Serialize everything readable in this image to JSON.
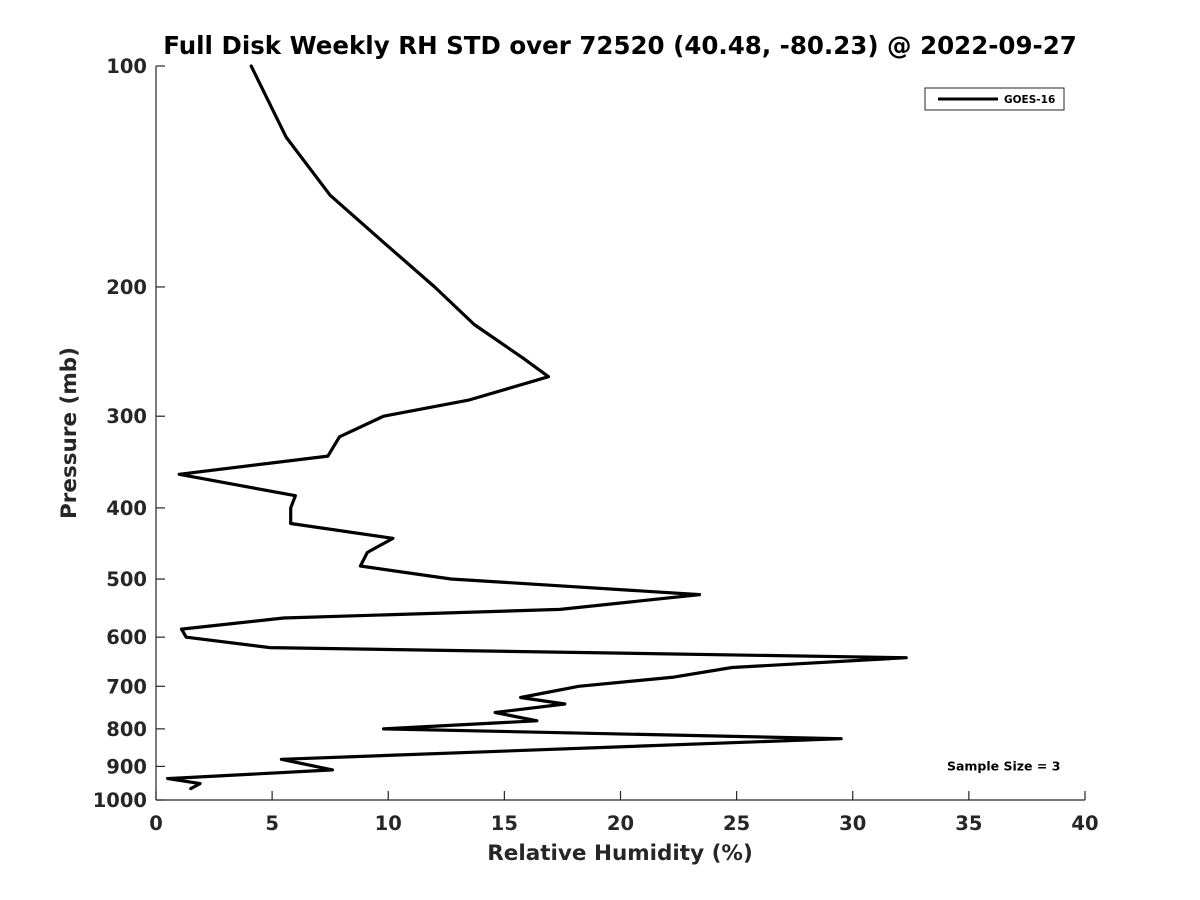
{
  "chart_data": {
    "type": "line",
    "title": "Full Disk Weekly RH STD over 72520 (40.48, -80.23) @ 2022-09-27",
    "xlabel": "Relative Humidity (%)",
    "ylabel": "Pressure (mb)",
    "xlim": [
      0,
      40
    ],
    "ylim": [
      100,
      1000
    ],
    "yscale": "log",
    "yreversed": true,
    "xticks": [
      0,
      5,
      10,
      15,
      20,
      25,
      30,
      35,
      40
    ],
    "xtick_labels": [
      "0",
      "5",
      "10",
      "15",
      "20",
      "25",
      "30",
      "35",
      "40"
    ],
    "yticks": [
      100,
      200,
      300,
      400,
      500,
      600,
      700,
      800,
      900,
      1000
    ],
    "ytick_labels": [
      "100",
      "200",
      "300",
      "400",
      "500",
      "600",
      "700",
      "800",
      "900",
      "1000"
    ],
    "grid": false,
    "legend_location": "top-right",
    "series": [
      {
        "name": "GOES-16",
        "color": "#000000",
        "x": [
          4.1,
          5.6,
          7.5,
          9.9,
          12.0,
          13.7,
          15.8,
          16.9,
          13.5,
          9.8,
          7.9,
          7.4,
          1.0,
          6.0,
          5.8,
          5.8,
          10.2,
          9.1,
          8.8,
          12.7,
          23.4,
          17.4,
          5.5,
          1.1,
          1.3,
          4.9,
          32.3,
          24.8,
          22.3,
          18.2,
          15.7,
          17.6,
          14.6,
          16.4,
          9.8,
          29.5,
          5.4,
          7.6,
          0.5,
          1.9,
          1.5
        ],
        "y": [
          100,
          125,
          150,
          175,
          200,
          225,
          250,
          265,
          285,
          300,
          320,
          340,
          360,
          385,
          400,
          420,
          440,
          460,
          480,
          500,
          525,
          550,
          565,
          585,
          600,
          620,
          640,
          660,
          680,
          700,
          725,
          740,
          760,
          780,
          800,
          825,
          880,
          910,
          935,
          950,
          965
        ]
      }
    ],
    "annotations": [
      {
        "text": "Sample Size = 3",
        "x": 36.5,
        "y": 900
      }
    ]
  }
}
